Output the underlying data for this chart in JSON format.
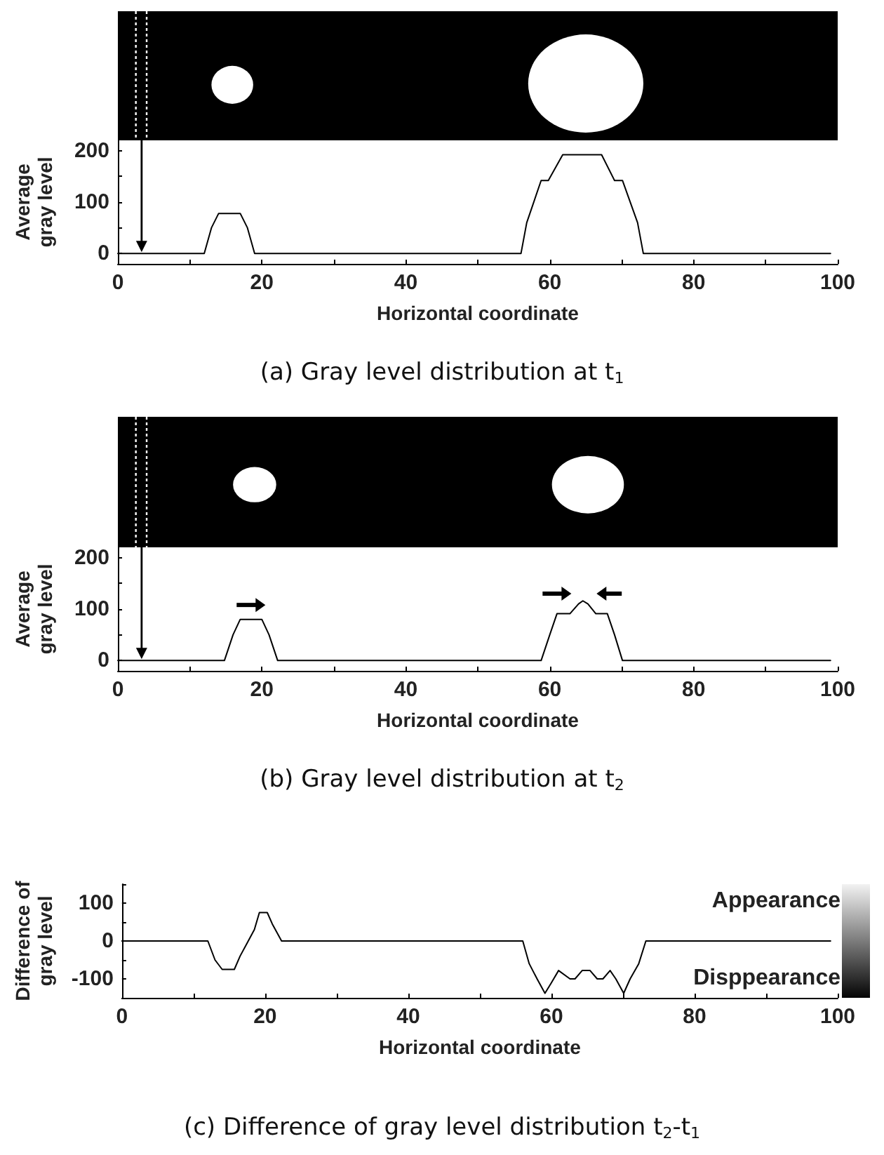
{
  "chart_data": [
    {
      "type": "line",
      "title": "(a) Gray level distribution at t$_{1}$",
      "xlabel": "Horizontal coordinate",
      "ylabel": "Average gray level",
      "color": "#000000",
      "marker": "none",
      "grid": false,
      "x": [
        0,
        12,
        13,
        14,
        17,
        18,
        19,
        56,
        56.8,
        58.8,
        59.8,
        61.8,
        67.2,
        69,
        70.1,
        72.2,
        73,
        99
      ],
      "values": [
        0,
        0,
        50,
        78,
        78,
        50,
        0,
        0,
        60,
        142,
        142,
        192,
        192,
        142,
        142,
        60,
        0,
        0
      ],
      "xlim": [
        0,
        100
      ],
      "xticks": [
        0,
        {
          "value": 10,
          "label": null
        },
        20,
        {
          "value": 30,
          "label": null
        },
        40,
        {
          "value": 50,
          "label": null
        },
        60,
        {
          "value": 70,
          "label": null
        },
        80,
        {
          "value": 90,
          "label": null
        },
        100
      ],
      "ylim": [
        -20,
        220
      ],
      "yticks": [
        0,
        {
          "value": 50,
          "label": null
        },
        100,
        {
          "value": 150,
          "label": null
        },
        200
      ]
    },
    {
      "type": "line",
      "title": "(b) Gray level distribution at t$_{2}$",
      "xlabel": "Horizontal coordinate",
      "ylabel": "Average gray level",
      "color": "#000000",
      "marker": "none",
      "grid": false,
      "x": [
        0,
        14.8,
        16,
        17,
        20,
        21,
        22.2,
        58.8,
        60,
        61,
        62.8,
        64,
        64.6,
        65.3,
        66.4,
        68,
        69,
        70.1,
        99
      ],
      "values": [
        0,
        0,
        50,
        80,
        80,
        50,
        0,
        0,
        50,
        91,
        91,
        110,
        116,
        110,
        91,
        91,
        50,
        0,
        0
      ],
      "xlim": [
        0,
        100
      ],
      "xticks": [
        0,
        {
          "value": 10,
          "label": null
        },
        20,
        {
          "value": 30,
          "label": null
        },
        40,
        {
          "value": 50,
          "label": null
        },
        60,
        {
          "value": 70,
          "label": null
        },
        80,
        {
          "value": 90,
          "label": null
        },
        100
      ],
      "ylim": [
        -20,
        220
      ],
      "yticks": [
        0,
        {
          "value": 50,
          "label": null
        },
        100,
        {
          "value": 150,
          "label": null
        },
        200
      ]
    },
    {
      "type": "line",
      "title": "(c) Difference of gray level distribution t$_{2}$-t$_{1}$",
      "xlabel": "Horizontal coordinate",
      "ylabel": "Difference of gray level",
      "color": "#000000",
      "marker": "none",
      "grid": false,
      "annotations": [
        "Appearance",
        "Disppearance"
      ],
      "x": [
        0,
        12,
        13,
        14,
        15.7,
        16.5,
        17.5,
        18.5,
        19.2,
        20.3,
        21,
        22.3,
        56,
        56.9,
        58,
        59.1,
        60,
        61,
        62.6,
        63.3,
        64.3,
        65.4,
        66.4,
        67.2,
        68.2,
        69,
        70.1,
        71,
        72.2,
        73.2,
        99
      ],
      "values": [
        0,
        0,
        -50,
        -75,
        -75,
        -40,
        -5,
        30,
        75,
        75,
        45,
        0,
        0,
        -60,
        -100,
        -138,
        -110,
        -78,
        -100,
        -100,
        -78,
        -78,
        -100,
        -100,
        -78,
        -100,
        -138,
        -100,
        -60,
        0,
        0
      ],
      "xlim": [
        0,
        100
      ],
      "xticks": [
        0,
        {
          "value": 10,
          "label": null
        },
        20,
        {
          "value": 30,
          "label": null
        },
        40,
        {
          "value": 50,
          "label": null
        },
        60,
        {
          "value": 70,
          "label": null
        },
        80,
        {
          "value": 90,
          "label": null
        },
        100
      ],
      "ylim": [
        -150,
        150
      ],
      "yticks": [
        {
          "value": -150,
          "label": null
        },
        -100,
        {
          "value": -50,
          "label": null
        },
        0,
        {
          "value": 50,
          "label": null
        },
        100,
        {
          "value": 150,
          "label": null
        }
      ]
    }
  ]
}
